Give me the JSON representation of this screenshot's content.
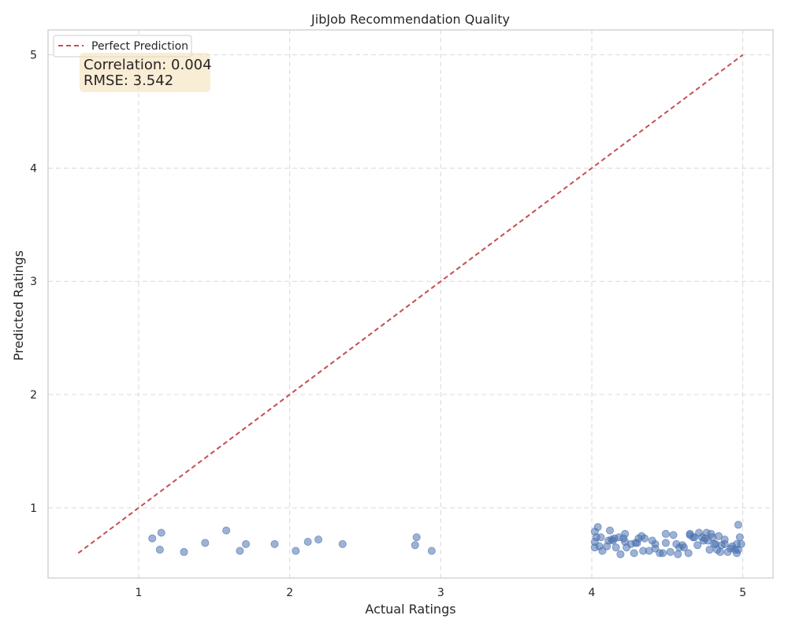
{
  "chart_data": {
    "type": "scatter",
    "title": "JibJob Recommendation Quality",
    "xlabel": "Actual Ratings",
    "ylabel": "Predicted Ratings",
    "xlim": [
      0.4,
      5.2
    ],
    "ylim": [
      0.38,
      5.22
    ],
    "xticks": [
      1,
      2,
      3,
      4,
      5
    ],
    "yticks": [
      1,
      2,
      3,
      4,
      5
    ],
    "grid": true,
    "legend": {
      "position": "top-left",
      "entries": [
        "Perfect Prediction"
      ]
    },
    "stats_box": {
      "lines": [
        "Correlation: 0.004",
        "RMSE: 3.542"
      ]
    },
    "colors": {
      "points": "#4c72b0",
      "reference_line": "#c44e52",
      "stats_box": "#f5deb3",
      "grid": "#d9d9d9",
      "axes": "#cccccc"
    },
    "reference_line": {
      "name": "Perfect Prediction",
      "x": [
        0.6,
        5.0
      ],
      "y": [
        0.6,
        5.0
      ],
      "style": "dashed"
    },
    "series": [
      {
        "points": [
          [
            1.09,
            0.73
          ],
          [
            1.14,
            0.63
          ],
          [
            1.15,
            0.78
          ],
          [
            1.3,
            0.61
          ],
          [
            1.44,
            0.69
          ],
          [
            1.58,
            0.8
          ],
          [
            1.67,
            0.62
          ],
          [
            1.71,
            0.68
          ],
          [
            1.9,
            0.68
          ],
          [
            2.04,
            0.62
          ],
          [
            2.12,
            0.7
          ],
          [
            2.19,
            0.72
          ],
          [
            2.35,
            0.68
          ],
          [
            2.83,
            0.67
          ],
          [
            2.84,
            0.74
          ],
          [
            2.94,
            0.62
          ],
          [
            4.02,
            0.79
          ],
          [
            4.02,
            0.7
          ],
          [
            4.02,
            0.65
          ],
          [
            4.03,
            0.74
          ],
          [
            4.04,
            0.83
          ],
          [
            4.05,
            0.66
          ],
          [
            4.06,
            0.74
          ],
          [
            4.07,
            0.62
          ],
          [
            4.1,
            0.66
          ],
          [
            4.11,
            0.71
          ],
          [
            4.12,
            0.8
          ],
          [
            4.13,
            0.72
          ],
          [
            4.14,
            0.71
          ],
          [
            4.15,
            0.73
          ],
          [
            4.16,
            0.65
          ],
          [
            4.18,
            0.74
          ],
          [
            4.19,
            0.59
          ],
          [
            4.21,
            0.73
          ],
          [
            4.22,
            0.77
          ],
          [
            4.22,
            0.7
          ],
          [
            4.23,
            0.65
          ],
          [
            4.26,
            0.68
          ],
          [
            4.28,
            0.6
          ],
          [
            4.29,
            0.69
          ],
          [
            4.3,
            0.69
          ],
          [
            4.31,
            0.73
          ],
          [
            4.33,
            0.75
          ],
          [
            4.34,
            0.62
          ],
          [
            4.35,
            0.73
          ],
          [
            4.38,
            0.62
          ],
          [
            4.4,
            0.71
          ],
          [
            4.42,
            0.68
          ],
          [
            4.42,
            0.64
          ],
          [
            4.45,
            0.6
          ],
          [
            4.47,
            0.6
          ],
          [
            4.49,
            0.69
          ],
          [
            4.49,
            0.77
          ],
          [
            4.52,
            0.61
          ],
          [
            4.54,
            0.76
          ],
          [
            4.56,
            0.68
          ],
          [
            4.57,
            0.59
          ],
          [
            4.58,
            0.65
          ],
          [
            4.6,
            0.67
          ],
          [
            4.61,
            0.65
          ],
          [
            4.64,
            0.6
          ],
          [
            4.65,
            0.76
          ],
          [
            4.65,
            0.77
          ],
          [
            4.67,
            0.74
          ],
          [
            4.68,
            0.74
          ],
          [
            4.7,
            0.67
          ],
          [
            4.71,
            0.78
          ],
          [
            4.73,
            0.74
          ],
          [
            4.74,
            0.71
          ],
          [
            4.75,
            0.73
          ],
          [
            4.76,
            0.78
          ],
          [
            4.77,
            0.71
          ],
          [
            4.78,
            0.63
          ],
          [
            4.79,
            0.77
          ],
          [
            4.8,
            0.74
          ],
          [
            4.81,
            0.68
          ],
          [
            4.82,
            0.68
          ],
          [
            4.83,
            0.63
          ],
          [
            4.84,
            0.75
          ],
          [
            4.85,
            0.61
          ],
          [
            4.86,
            0.67
          ],
          [
            4.88,
            0.68
          ],
          [
            4.88,
            0.72
          ],
          [
            4.9,
            0.61
          ],
          [
            4.92,
            0.64
          ],
          [
            4.93,
            0.66
          ],
          [
            4.95,
            0.63
          ],
          [
            4.96,
            0.68
          ],
          [
            4.96,
            0.6
          ],
          [
            4.97,
            0.85
          ],
          [
            4.97,
            0.63
          ],
          [
            4.98,
            0.74
          ],
          [
            4.99,
            0.68
          ]
        ]
      }
    ]
  }
}
